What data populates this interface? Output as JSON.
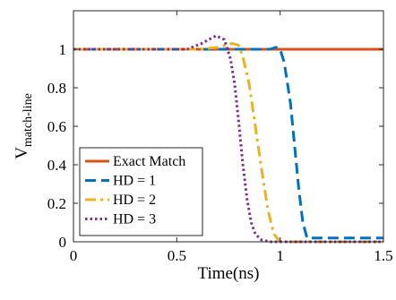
{
  "chart_data": {
    "type": "line",
    "xlabel": "Time(ns)",
    "ylabel": {
      "main": "V",
      "subscript": "match-line"
    },
    "xlim": [
      0,
      1.5
    ],
    "ylim": [
      0,
      1.2
    ],
    "xticks": [
      0,
      0.5,
      1,
      1.5
    ],
    "xtick_labels": [
      "0",
      "0.5",
      "1",
      "1.5"
    ],
    "yticks": [
      0,
      0.2,
      0.4,
      0.6,
      0.8,
      1
    ],
    "ytick_labels": [
      "0",
      "0.2",
      "0.4",
      "0.6",
      "0.8",
      "1"
    ],
    "grid": false,
    "legend_position": "bottom-left",
    "series": [
      {
        "name": "Exact Match",
        "color": "#D95319",
        "style": "solid",
        "x": [
          0,
          0.25,
          0.5,
          0.75,
          1.0,
          1.25,
          1.5
        ],
        "y": [
          1,
          1,
          1,
          1,
          1,
          1,
          1
        ]
      },
      {
        "name": "HD = 1",
        "color": "#0072BD",
        "style": "dash",
        "x": [
          0,
          0.9,
          0.95,
          0.98,
          1.0,
          1.02,
          1.05,
          1.07,
          1.09,
          1.11,
          1.13,
          1.5
        ],
        "y": [
          1,
          1,
          1.0,
          1.01,
          1.0,
          0.93,
          0.72,
          0.5,
          0.28,
          0.1,
          0.02,
          0.02
        ]
      },
      {
        "name": "HD = 2",
        "color": "#EDB120",
        "style": "dashdot",
        "x": [
          0,
          0.62,
          0.7,
          0.77,
          0.8,
          0.82,
          0.85,
          0.88,
          0.91,
          0.94,
          0.97,
          1.0,
          1.5
        ],
        "y": [
          1,
          1,
          1.01,
          1.03,
          1.02,
          0.96,
          0.82,
          0.6,
          0.38,
          0.17,
          0.04,
          0.0,
          0.0
        ]
      },
      {
        "name": "HD = 3",
        "color": "#7E2F8E",
        "style": "dot",
        "x": [
          0,
          0.55,
          0.62,
          0.69,
          0.73,
          0.76,
          0.78,
          0.8,
          0.82,
          0.84,
          0.86,
          0.88,
          0.91,
          0.95,
          1.5
        ],
        "y": [
          1,
          1,
          1.03,
          1.07,
          1.05,
          0.95,
          0.82,
          0.62,
          0.4,
          0.22,
          0.1,
          0.04,
          0.01,
          0.0,
          0.0
        ]
      }
    ]
  }
}
